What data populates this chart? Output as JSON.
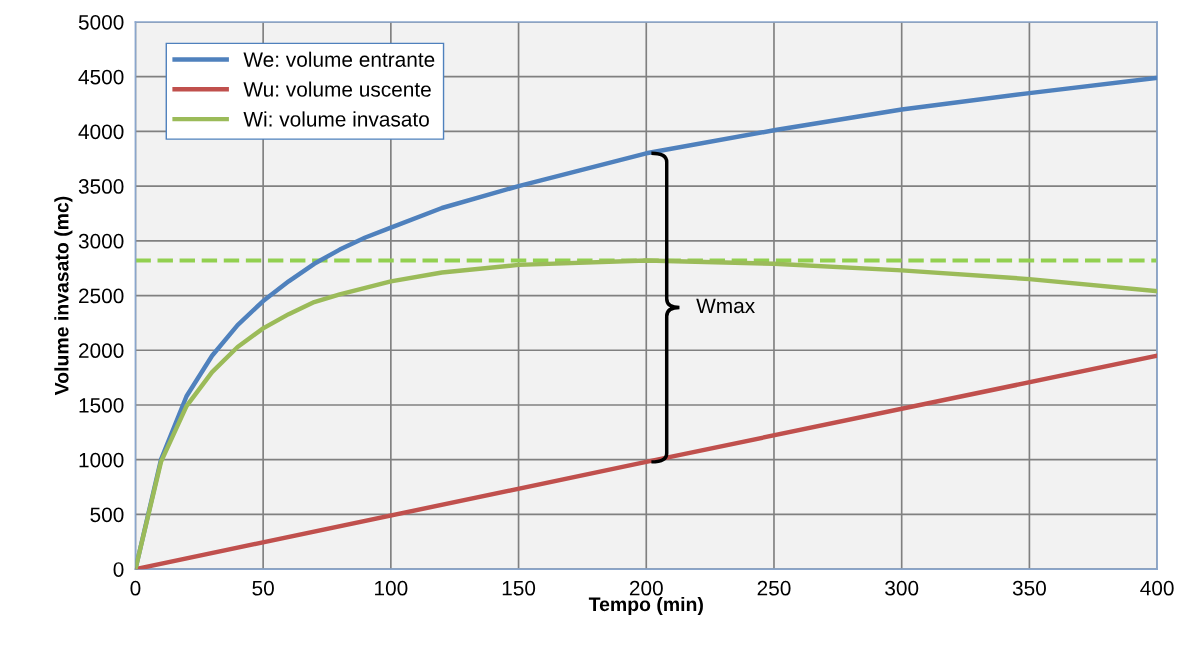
{
  "chart_data": {
    "type": "line",
    "xlabel": "Tempo (min)",
    "ylabel": "Volume invasato (mc)",
    "xlim": [
      0,
      400
    ],
    "xticks": [
      0,
      50,
      100,
      150,
      200,
      250,
      300,
      350,
      400
    ],
    "ylim": [
      0,
      5000
    ],
    "yticks": [
      0,
      500,
      1000,
      1500,
      2000,
      2500,
      3000,
      3500,
      4000,
      4500,
      5000
    ],
    "grid": true,
    "legend": "top left",
    "line_style": "solid",
    "marker": "none",
    "series": [
      {
        "name": "We: volume entrante",
        "color": "#4f81bd",
        "x": [
          0,
          10,
          20,
          30,
          40,
          50,
          60,
          70,
          80,
          90,
          100,
          120,
          150,
          200,
          250,
          300,
          350,
          400
        ],
        "values": [
          0,
          1000,
          1580,
          1950,
          2230,
          2450,
          2630,
          2790,
          2920,
          3030,
          3120,
          3300,
          3500,
          3800,
          4010,
          4200,
          4350,
          4490
        ]
      },
      {
        "name": "Wu: volume uscente",
        "color": "#c0504d",
        "x": [
          0,
          200,
          400
        ],
        "values": [
          0,
          980,
          1950
        ]
      },
      {
        "name": "Wi: volume invasato",
        "color": "#9bbb59",
        "x": [
          0,
          10,
          20,
          30,
          40,
          50,
          60,
          70,
          80,
          90,
          100,
          120,
          150,
          200,
          250,
          300,
          350,
          400
        ],
        "values": [
          0,
          980,
          1490,
          1800,
          2030,
          2200,
          2330,
          2440,
          2510,
          2570,
          2630,
          2710,
          2780,
          2820,
          2790,
          2730,
          2650,
          2540
        ]
      }
    ],
    "ref_lines": [
      {
        "axis": "y",
        "value": 2820,
        "color": "#92d050",
        "line_style": "dashed"
      }
    ],
    "annotations": [
      "Wmax"
    ]
  }
}
